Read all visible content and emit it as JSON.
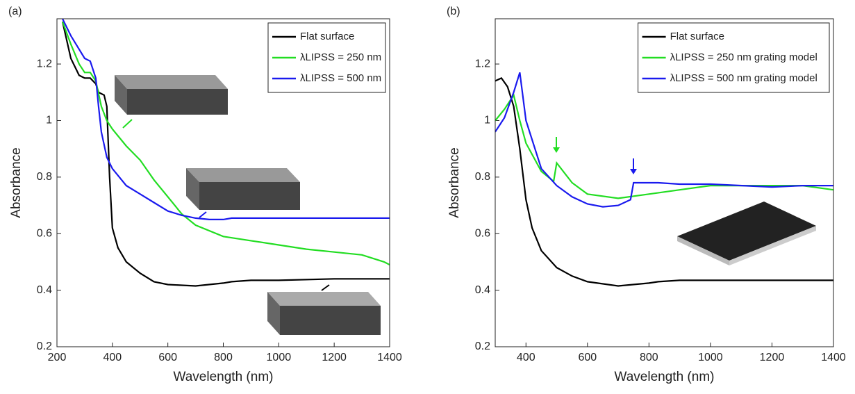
{
  "chart_data": [
    {
      "type": "line",
      "panel_label": "(a)",
      "x_label": "Wavelength (nm)",
      "y_label": "Absorbance",
      "xlim": [
        200,
        1400
      ],
      "ylim": [
        0.2,
        1.36
      ],
      "xticks": [
        200,
        400,
        600,
        800,
        1000,
        1200,
        1400
      ],
      "yticks": [
        0.2,
        0.4,
        0.6,
        0.8,
        1,
        1.2
      ],
      "legend": "upper right",
      "series": [
        {
          "name": "Flat surface",
          "color": "#000000",
          "x": [
            220,
            250,
            280,
            300,
            320,
            340,
            350,
            370,
            380,
            390,
            400,
            420,
            450,
            500,
            550,
            600,
            700,
            800,
            830,
            900,
            1000,
            1200,
            1400
          ],
          "values": [
            1.35,
            1.22,
            1.16,
            1.15,
            1.15,
            1.13,
            1.1,
            1.09,
            1.05,
            0.8,
            0.62,
            0.55,
            0.5,
            0.46,
            0.43,
            0.42,
            0.415,
            0.425,
            0.43,
            0.435,
            0.435,
            0.44,
            0.44
          ]
        },
        {
          "name": "λLIPSS = 250 nm",
          "color": "#22dd22",
          "x": [
            220,
            250,
            280,
            300,
            320,
            340,
            360,
            380,
            400,
            450,
            500,
            550,
            600,
            650,
            700,
            800,
            900,
            1000,
            1100,
            1200,
            1300,
            1380,
            1400
          ],
          "values": [
            1.35,
            1.27,
            1.2,
            1.17,
            1.17,
            1.14,
            1.05,
            1.0,
            0.97,
            0.91,
            0.86,
            0.79,
            0.73,
            0.67,
            0.63,
            0.59,
            0.575,
            0.56,
            0.545,
            0.535,
            0.525,
            0.5,
            0.49
          ]
        },
        {
          "name": "λLIPSS = 500 nm",
          "color": "#1a1aee",
          "x": [
            220,
            250,
            300,
            320,
            340,
            350,
            360,
            380,
            400,
            450,
            500,
            550,
            600,
            650,
            700,
            750,
            800,
            830,
            900,
            1400
          ],
          "values": [
            1.36,
            1.3,
            1.22,
            1.21,
            1.15,
            1.05,
            0.96,
            0.87,
            0.83,
            0.77,
            0.74,
            0.71,
            0.68,
            0.665,
            0.655,
            0.65,
            0.65,
            0.655,
            0.655,
            0.655
          ]
        }
      ]
    },
    {
      "type": "line",
      "panel_label": "(b)",
      "x_label": "Wavelength (nm)",
      "y_label": "Absorbance",
      "xlim": [
        300,
        1400
      ],
      "ylim": [
        0.2,
        1.36
      ],
      "xticks": [
        400,
        600,
        800,
        1000,
        1200,
        1400
      ],
      "yticks": [
        0.2,
        0.4,
        0.6,
        0.8,
        1,
        1.2
      ],
      "legend": "upper right",
      "series": [
        {
          "name": "Flat surface",
          "color": "#000000",
          "x": [
            300,
            320,
            340,
            360,
            380,
            400,
            420,
            450,
            500,
            550,
            600,
            700,
            800,
            830,
            900,
            1000,
            1200,
            1400
          ],
          "values": [
            1.14,
            1.15,
            1.12,
            1.05,
            0.9,
            0.72,
            0.62,
            0.54,
            0.48,
            0.45,
            0.43,
            0.415,
            0.425,
            0.43,
            0.435,
            0.435,
            0.435,
            0.435
          ]
        },
        {
          "name": "λLIPSS = 250 nm grating model",
          "color": "#22dd22",
          "x": [
            300,
            330,
            360,
            380,
            400,
            450,
            490,
            500,
            550,
            600,
            700,
            800,
            900,
            1000,
            1200,
            1300,
            1400
          ],
          "values": [
            1.0,
            1.04,
            1.09,
            1.0,
            0.92,
            0.82,
            0.785,
            0.85,
            0.78,
            0.74,
            0.725,
            0.74,
            0.755,
            0.77,
            0.77,
            0.77,
            0.755
          ]
        },
        {
          "name": "λLIPSS = 500 nm grating model",
          "color": "#1a1aee",
          "x": [
            300,
            330,
            360,
            380,
            400,
            450,
            500,
            550,
            600,
            650,
            700,
            740,
            750,
            800,
            830,
            900,
            1000,
            1200,
            1300,
            1400
          ],
          "values": [
            0.96,
            1.01,
            1.1,
            1.17,
            1.0,
            0.83,
            0.77,
            0.73,
            0.705,
            0.695,
            0.7,
            0.72,
            0.78,
            0.78,
            0.78,
            0.775,
            0.775,
            0.765,
            0.77,
            0.77
          ]
        }
      ]
    }
  ]
}
